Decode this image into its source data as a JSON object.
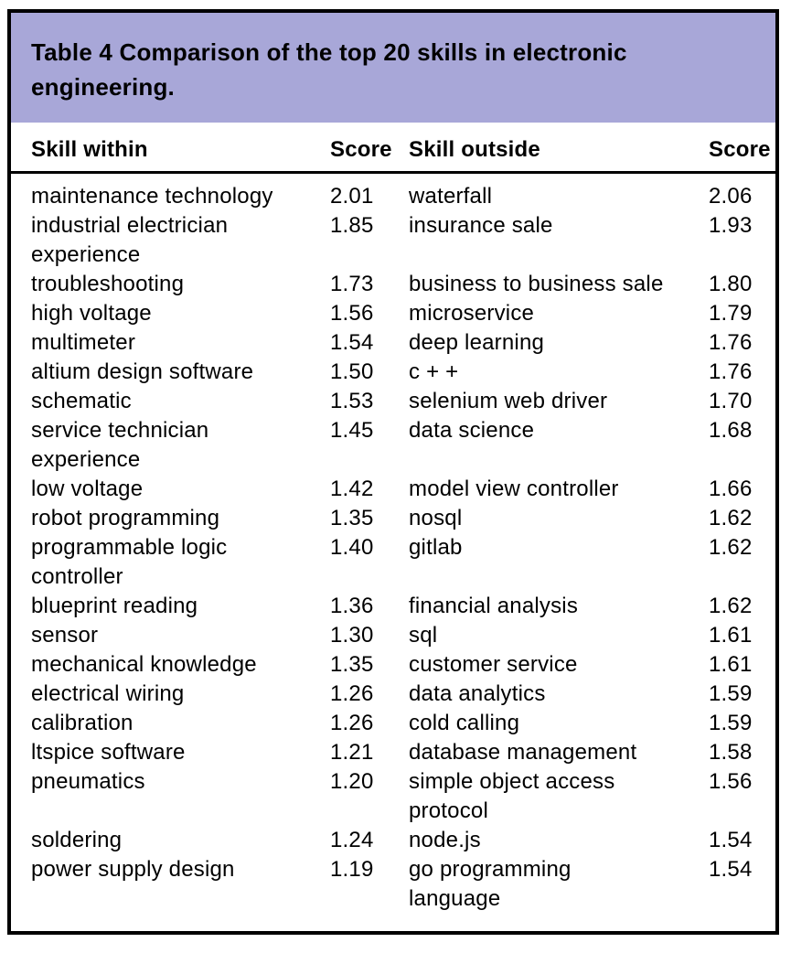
{
  "colors": {
    "title_band_background": "#a8a7d8",
    "frame_border": "#000000",
    "text": "#000000"
  },
  "table": {
    "title": "Table 4 Comparison of the top 20 skills in electronic\nengineering.",
    "columns": [
      "Skill within",
      "Score",
      "Skill outside",
      "Score"
    ],
    "rows": [
      {
        "skill_within": "maintenance technology",
        "score_within": "2.01",
        "skill_outside": "waterfall",
        "score_outside": "2.06"
      },
      {
        "skill_within": "industrial electrician\nexperience",
        "score_within": "1.85",
        "skill_outside": "insurance sale",
        "score_outside": "1.93"
      },
      {
        "skill_within": "troubleshooting",
        "score_within": "1.73",
        "skill_outside": "business to business sale",
        "score_outside": "1.80"
      },
      {
        "skill_within": "high voltage",
        "score_within": "1.56",
        "skill_outside": "microservice",
        "score_outside": "1.79"
      },
      {
        "skill_within": "multimeter",
        "score_within": "1.54",
        "skill_outside": "deep learning",
        "score_outside": "1.76"
      },
      {
        "skill_within": "altium design software",
        "score_within": "1.50",
        "skill_outside": "c + +",
        "score_outside": "1.76"
      },
      {
        "skill_within": "schematic",
        "score_within": "1.53",
        "skill_outside": "selenium web driver",
        "score_outside": "1.70"
      },
      {
        "skill_within": "service technician\nexperience",
        "score_within": "1.45",
        "skill_outside": "data science",
        "score_outside": "1.68"
      },
      {
        "skill_within": "low voltage",
        "score_within": "1.42",
        "skill_outside": "model view controller",
        "score_outside": "1.66"
      },
      {
        "skill_within": "robot programming",
        "score_within": "1.35",
        "skill_outside": "nosql",
        "score_outside": "1.62"
      },
      {
        "skill_within": "programmable logic\ncontroller",
        "score_within": "1.40",
        "skill_outside": "gitlab",
        "score_outside": "1.62"
      },
      {
        "skill_within": "blueprint reading",
        "score_within": "1.36",
        "skill_outside": "financial analysis",
        "score_outside": "1.62"
      },
      {
        "skill_within": "sensor",
        "score_within": "1.30",
        "skill_outside": "sql",
        "score_outside": "1.61"
      },
      {
        "skill_within": "mechanical knowledge",
        "score_within": "1.35",
        "skill_outside": "customer service",
        "score_outside": "1.61"
      },
      {
        "skill_within": "electrical wiring",
        "score_within": "1.26",
        "skill_outside": "data analytics",
        "score_outside": "1.59"
      },
      {
        "skill_within": "calibration",
        "score_within": "1.26",
        "skill_outside": "cold calling",
        "score_outside": "1.59"
      },
      {
        "skill_within": "ltspice software",
        "score_within": "1.21",
        "skill_outside": "database management",
        "score_outside": "1.58"
      },
      {
        "skill_within": "pneumatics",
        "score_within": "1.20",
        "skill_outside": "simple object access\nprotocol",
        "score_outside": "1.56"
      },
      {
        "skill_within": "soldering",
        "score_within": "1.24",
        "skill_outside": "node.js",
        "score_outside": "1.54"
      },
      {
        "skill_within": "power supply design",
        "score_within": "1.19",
        "skill_outside": "go programming\nlanguage",
        "score_outside": "1.54"
      }
    ]
  }
}
